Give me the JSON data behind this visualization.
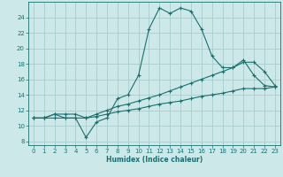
{
  "xlabel": "Humidex (Indice chaleur)",
  "bg_color": "#cce8e8",
  "grid_color": "#aacccc",
  "line_color": "#1a7070",
  "x_ticks": [
    0,
    1,
    2,
    3,
    4,
    5,
    6,
    7,
    8,
    9,
    10,
    11,
    12,
    13,
    14,
    15,
    16,
    17,
    18,
    19,
    20,
    21,
    22,
    23
  ],
  "y_ticks": [
    8,
    10,
    12,
    14,
    16,
    18,
    20,
    22,
    24
  ],
  "ylim": [
    7.5,
    26.0
  ],
  "xlim": [
    -0.5,
    23.5
  ],
  "line1_x": [
    0,
    1,
    2,
    3,
    4,
    5,
    6,
    7,
    8,
    9,
    10,
    11,
    12,
    13,
    14,
    15,
    16,
    17,
    18,
    19,
    20,
    21,
    22,
    23
  ],
  "line1_y": [
    11,
    11,
    11.5,
    11,
    11,
    8.5,
    10.5,
    11,
    13.5,
    14,
    16.5,
    22.5,
    25.2,
    24.5,
    25.2,
    24.8,
    22.5,
    19,
    17.5,
    17.5,
    18.5,
    16.5,
    15.2,
    15.0
  ],
  "line2_x": [
    0,
    1,
    2,
    3,
    4,
    5,
    6,
    7,
    8,
    9,
    10,
    11,
    12,
    13,
    14,
    15,
    16,
    17,
    18,
    19,
    20,
    21,
    22,
    23
  ],
  "line2_y": [
    11,
    11,
    11.5,
    11.5,
    11.5,
    11,
    11.5,
    12,
    12.5,
    12.8,
    13.2,
    13.6,
    14.0,
    14.5,
    15.0,
    15.5,
    16.0,
    16.5,
    17.0,
    17.5,
    18.2,
    18.2,
    17.0,
    15.2
  ],
  "line3_x": [
    0,
    1,
    2,
    3,
    4,
    5,
    6,
    7,
    8,
    9,
    10,
    11,
    12,
    13,
    14,
    15,
    16,
    17,
    18,
    19,
    20,
    21,
    22,
    23
  ],
  "line3_y": [
    11,
    11,
    11,
    11,
    11,
    11,
    11.2,
    11.5,
    11.8,
    12.0,
    12.2,
    12.5,
    12.8,
    13.0,
    13.2,
    13.5,
    13.8,
    14.0,
    14.2,
    14.5,
    14.8,
    14.8,
    14.8,
    15.0
  ]
}
